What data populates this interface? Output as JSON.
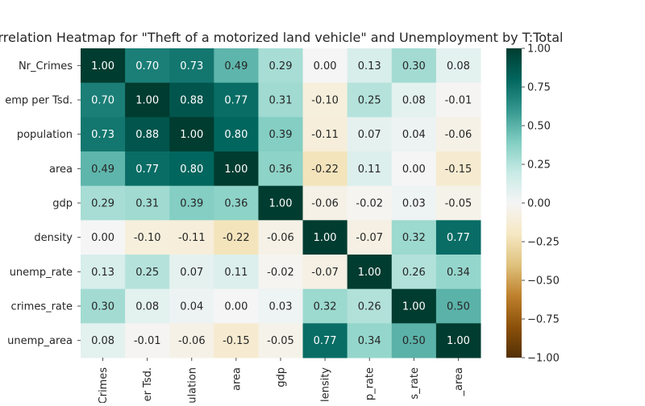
{
  "chart_data": {
    "type": "heatmap",
    "title": "rrelation Heatmap for \"Theft of a motorized land vehicle\" and Unemployment by T:Total",
    "row_labels": [
      "Nr_Crimes",
      "emp per Tsd.",
      "population",
      "area",
      "gdp",
      "density",
      "unemp_rate",
      "crimes_rate",
      "unemp_area"
    ],
    "col_labels": [
      "Crimes",
      "er Tsd.",
      "ulation",
      "area",
      "gdp",
      "lensity",
      "p_rate",
      "s_rate",
      "_area"
    ],
    "values": [
      [
        1.0,
        0.7,
        0.73,
        0.49,
        0.29,
        0.0,
        0.13,
        0.3,
        0.08
      ],
      [
        0.7,
        1.0,
        0.88,
        0.77,
        0.31,
        -0.1,
        0.25,
        0.08,
        -0.01
      ],
      [
        0.73,
        0.88,
        1.0,
        0.8,
        0.39,
        -0.11,
        0.07,
        0.04,
        -0.06
      ],
      [
        0.49,
        0.77,
        0.8,
        1.0,
        0.36,
        -0.22,
        0.11,
        0.0,
        -0.15
      ],
      [
        0.29,
        0.31,
        0.39,
        0.36,
        1.0,
        -0.06,
        -0.02,
        0.03,
        -0.05
      ],
      [
        0.0,
        -0.1,
        -0.11,
        -0.22,
        -0.06,
        1.0,
        -0.07,
        0.32,
        0.77
      ],
      [
        0.13,
        0.25,
        0.07,
        0.11,
        -0.02,
        -0.07,
        1.0,
        0.26,
        0.34
      ],
      [
        0.3,
        0.08,
        0.04,
        0.0,
        0.03,
        0.32,
        0.26,
        1.0,
        0.5
      ],
      [
        0.08,
        -0.01,
        -0.06,
        -0.15,
        -0.05,
        0.77,
        0.34,
        0.5,
        1.0
      ]
    ],
    "value_format": "2 decimals",
    "colormap": "BrBG",
    "vmin": -1.0,
    "vmax": 1.0,
    "colorbar_ticks": [
      "1.00",
      "0.75",
      "0.50",
      "0.25",
      "0.00",
      "−0.25",
      "−0.50",
      "−0.75",
      "−1.00"
    ],
    "colorbar_tick_values": [
      1.0,
      0.75,
      0.5,
      0.25,
      0.0,
      -0.25,
      -0.5,
      -0.75,
      -1.0
    ]
  }
}
